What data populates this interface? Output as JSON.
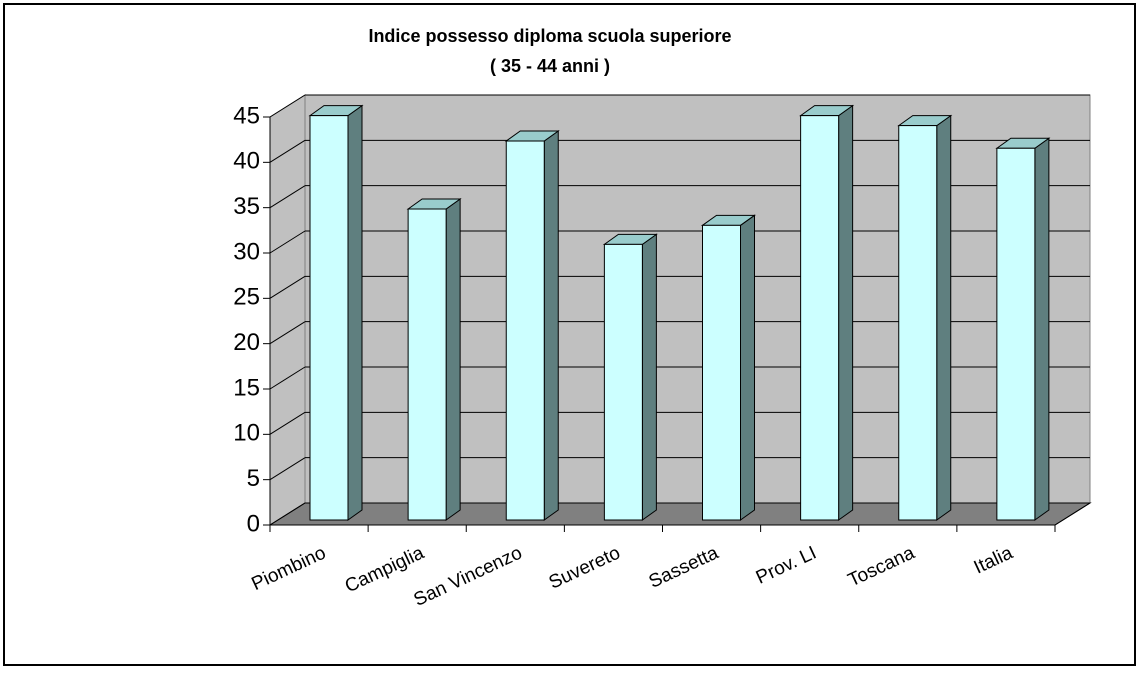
{
  "chart_data": {
    "type": "bar3d",
    "title": "Indice possesso   diploma scuola superiore",
    "subtitle": "( 35 - 44 anni )",
    "categories": [
      "Piombino",
      "Campiglia",
      "San Vincenzo",
      "Suvereto",
      "Sassetta",
      "Prov. LI",
      "Toscana",
      "Italia"
    ],
    "values": [
      44.6,
      34.3,
      41.8,
      30.4,
      32.5,
      44.6,
      43.5,
      41.0
    ],
    "color": "#ccffff",
    "ylim": [
      0,
      45
    ],
    "yticks": [
      0,
      5,
      10,
      15,
      20,
      25,
      30,
      35,
      40,
      45
    ],
    "grid": true
  }
}
